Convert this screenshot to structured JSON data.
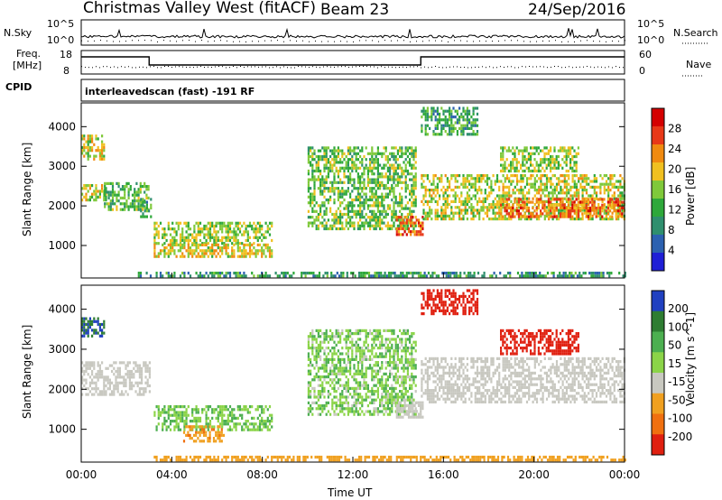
{
  "header": {
    "station": "Christmas Valley West (fitACF)",
    "beam": "Beam 23",
    "date": "24/Sep/2016"
  },
  "nsky_panel": {
    "left_label": "N.Sky",
    "right_label": "N.Search",
    "left_ticks": [
      "10^5",
      "10^0"
    ],
    "right_ticks": [
      "10^5",
      "10^0"
    ]
  },
  "freq_panel": {
    "left_label_1": "Freq.",
    "left_label_2": "[MHz]",
    "right_label": "Nave",
    "left_ticks": [
      "18",
      "8"
    ],
    "right_ticks": [
      "60",
      "0"
    ]
  },
  "cpid": {
    "label": "CPID",
    "scan": "interleavedscan (fast) -191 RF"
  },
  "xaxis": {
    "label": "Time UT",
    "ticks": [
      "00:00",
      "04:00",
      "08:00",
      "12:00",
      "16:00",
      "20:00",
      "00:00"
    ]
  },
  "chart_data": [
    {
      "type": "heatmap",
      "title": "",
      "ylabel": "Slant Range [km]",
      "xlabel": "",
      "x_range_hours": [
        0,
        24
      ],
      "ylim": [
        180,
        4600
      ],
      "yticks": [
        1000,
        2000,
        3000,
        4000
      ],
      "colorbar_label": "Power [dB]",
      "colorbar_ticks": [
        "4",
        "8",
        "12",
        "16",
        "20",
        "24",
        "28"
      ],
      "colorbar_range": [
        0,
        30
      ],
      "colors": [
        "#1f1fd6",
        "#2c61b0",
        "#2f8f6e",
        "#2ea83a",
        "#7fc93a",
        "#f0c020",
        "#f08a10",
        "#e83818",
        "#d40000"
      ],
      "regions": [
        {
          "t0": 0.0,
          "t1": 1.1,
          "r0": 2150,
          "r1": 2550,
          "intensity": 0.55
        },
        {
          "t0": 0.0,
          "t1": 1.0,
          "r0": 3200,
          "r1": 3800,
          "intensity": 0.55
        },
        {
          "t0": 1.0,
          "t1": 3.0,
          "r0": 1900,
          "r1": 2600,
          "intensity": 0.4
        },
        {
          "t0": 2.6,
          "t1": 3.1,
          "r0": 1700,
          "r1": 2200,
          "intensity": 0.35
        },
        {
          "t0": 3.2,
          "t1": 8.4,
          "r0": 1050,
          "r1": 1600,
          "intensity": 0.5
        },
        {
          "t0": 3.2,
          "t1": 8.4,
          "r0": 700,
          "r1": 1050,
          "intensity": 0.6
        },
        {
          "t0": 2.5,
          "t1": 24.0,
          "r0": 200,
          "r1": 340,
          "intensity": 0.3
        },
        {
          "t0": 10.0,
          "t1": 14.8,
          "r0": 1400,
          "r1": 3500,
          "intensity": 0.45
        },
        {
          "t0": 13.9,
          "t1": 15.1,
          "r0": 1300,
          "r1": 1750,
          "intensity": 0.8
        },
        {
          "t0": 15.0,
          "t1": 24.0,
          "r0": 1700,
          "r1": 2800,
          "intensity": 0.55
        },
        {
          "t0": 18.5,
          "t1": 24.0,
          "r0": 1750,
          "r1": 2200,
          "intensity": 0.8
        },
        {
          "t0": 18.5,
          "t1": 22.0,
          "r0": 2900,
          "r1": 3500,
          "intensity": 0.5
        },
        {
          "t0": 15.0,
          "t1": 17.5,
          "r0": 3800,
          "r1": 4500,
          "intensity": 0.35
        }
      ]
    },
    {
      "type": "heatmap",
      "title": "",
      "ylabel": "Slant Range [km]",
      "xlabel": "Time UT",
      "x_range_hours": [
        0,
        24
      ],
      "ylim": [
        180,
        4600
      ],
      "yticks": [
        1000,
        2000,
        3000,
        4000
      ],
      "colorbar_label": "Velocity [m s^-1]",
      "colorbar_ticks": [
        "200",
        "100",
        "50",
        "15",
        "-15",
        "-50",
        "-100",
        "-200"
      ],
      "colors": [
        "#2040c0",
        "#2e7d32",
        "#4caf50",
        "#8bd448",
        "#c8c8c0",
        "#f0a020",
        "#f07010",
        "#e02010"
      ],
      "regions": [
        {
          "t0": 0.0,
          "t1": 1.0,
          "r0": 3300,
          "r1": 3800,
          "vel": 150
        },
        {
          "t0": 0.0,
          "t1": 3.0,
          "r0": 1900,
          "r1": 2700,
          "vel": 0
        },
        {
          "t0": 3.2,
          "t1": 8.4,
          "r0": 1000,
          "r1": 1600,
          "vel": 30
        },
        {
          "t0": 4.5,
          "t1": 6.3,
          "r0": 700,
          "r1": 1100,
          "vel": -40
        },
        {
          "t0": 3.2,
          "t1": 24.0,
          "r0": 200,
          "r1": 340,
          "vel": -30
        },
        {
          "t0": 10.0,
          "t1": 14.8,
          "r0": 1400,
          "r1": 3500,
          "vel": 25
        },
        {
          "t0": 13.9,
          "t1": 15.1,
          "r0": 1300,
          "r1": 1700,
          "vel": 0
        },
        {
          "t0": 15.0,
          "t1": 24.0,
          "r0": 1700,
          "r1": 2800,
          "vel": 0
        },
        {
          "t0": 18.5,
          "t1": 22.0,
          "r0": 2900,
          "r1": 3500,
          "vel": -150
        },
        {
          "t0": 15.0,
          "t1": 17.5,
          "r0": 3900,
          "r1": 4500,
          "vel": -150
        }
      ]
    }
  ]
}
